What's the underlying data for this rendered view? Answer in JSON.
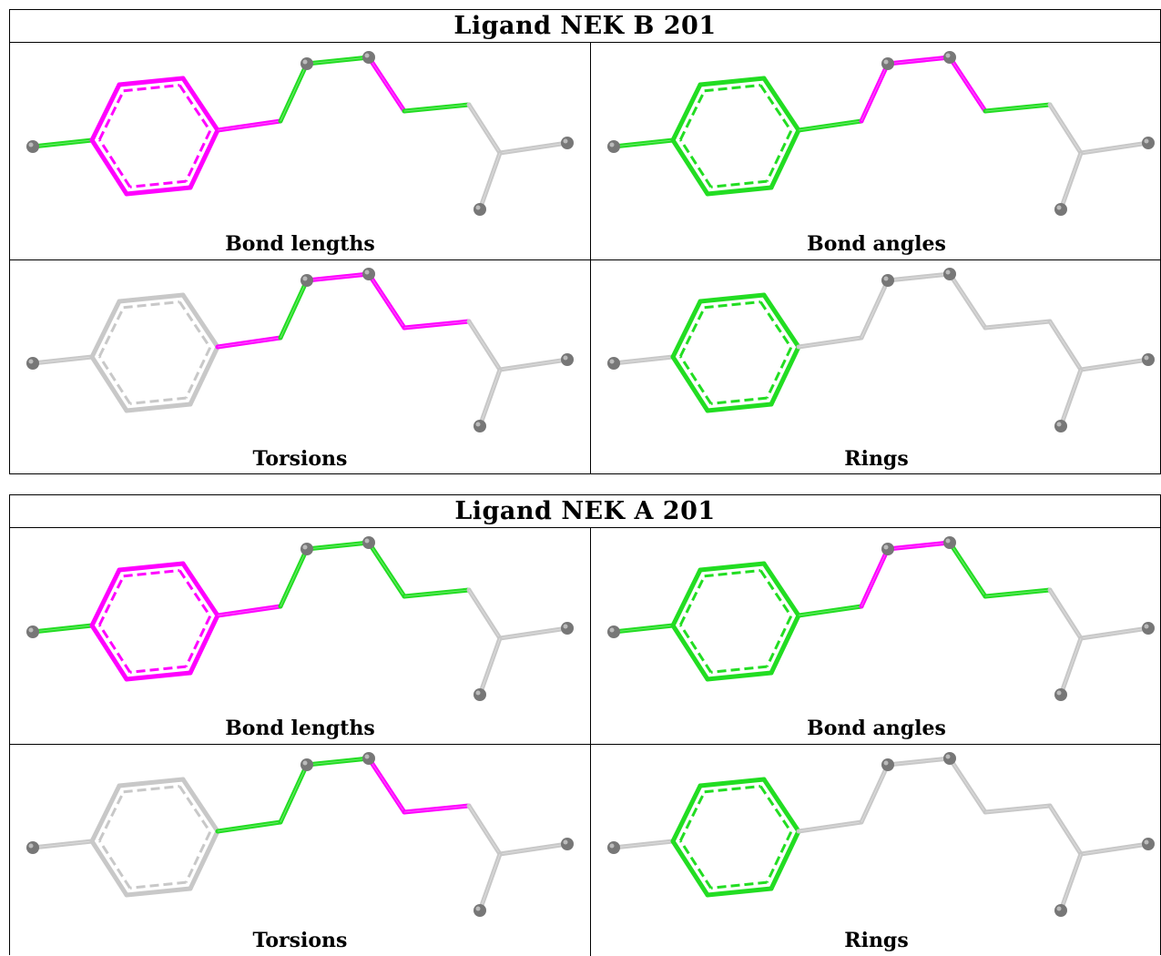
{
  "colors": {
    "outlier": "#ff00ff",
    "ok": "#22dd22",
    "neutral": "#c8c8c8",
    "atom": "#777777"
  },
  "tables": [
    {
      "title": "Ligand NEK B 201",
      "panels": [
        {
          "caption": "Bond lengths",
          "bonds": {
            "ext_left": "ok",
            "ring": "outlier",
            "ring_link": "outlier",
            "link1": "ok",
            "link2": "ok",
            "link3": "outlier",
            "link4": "ok",
            "tail": "neutral"
          }
        },
        {
          "caption": "Bond angles",
          "bonds": {
            "ext_left": "ok",
            "ring": "ok",
            "ring_link": "ok",
            "link1": "outlier",
            "link2": "outlier",
            "link3": "outlier",
            "link4": "ok",
            "tail": "neutral"
          }
        },
        {
          "caption": "Torsions",
          "bonds": {
            "ext_left": "neutral",
            "ring": "neutral",
            "ring_link": "outlier",
            "link1": "ok",
            "link2": "outlier",
            "link3": "outlier",
            "link4": "outlier",
            "tail": "neutral"
          }
        },
        {
          "caption": "Rings",
          "bonds": {
            "ext_left": "neutral",
            "ring": "ok",
            "ring_link": "neutral",
            "link1": "neutral",
            "link2": "neutral",
            "link3": "neutral",
            "link4": "neutral",
            "tail": "neutral"
          }
        }
      ]
    },
    {
      "title": "Ligand NEK A 201",
      "panels": [
        {
          "caption": "Bond lengths",
          "bonds": {
            "ext_left": "ok",
            "ring": "outlier",
            "ring_link": "outlier",
            "link1": "ok",
            "link2": "ok",
            "link3": "ok",
            "link4": "ok",
            "tail": "neutral"
          }
        },
        {
          "caption": "Bond angles",
          "bonds": {
            "ext_left": "ok",
            "ring": "ok",
            "ring_link": "ok",
            "link1": "outlier",
            "link2": "outlier",
            "link3": "ok",
            "link4": "ok",
            "tail": "neutral"
          }
        },
        {
          "caption": "Torsions",
          "bonds": {
            "ext_left": "neutral",
            "ring": "neutral",
            "ring_link": "ok",
            "link1": "ok",
            "link2": "ok",
            "link3": "outlier",
            "link4": "outlier",
            "tail": "neutral"
          }
        },
        {
          "caption": "Rings",
          "bonds": {
            "ext_left": "neutral",
            "ring": "ok",
            "ring_link": "neutral",
            "link1": "neutral",
            "link2": "neutral",
            "link3": "neutral",
            "link4": "neutral",
            "tail": "neutral"
          }
        }
      ]
    }
  ]
}
